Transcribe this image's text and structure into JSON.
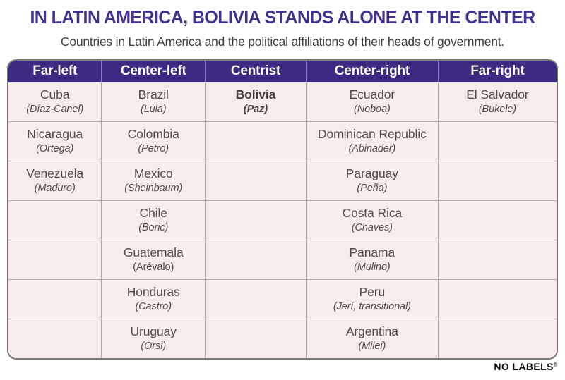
{
  "header": {
    "title": "IN LATIN AMERICA, BOLIVIA STANDS ALONE AT THE CENTER",
    "subtitle": "Countries in Latin America and the political affiliations of their heads of government."
  },
  "colors": {
    "title_purple": "#44318e",
    "header_bar_purple": "#3d2a81",
    "header_divider_lavender": "#8679bb",
    "cell_background": "#f6edea",
    "grid_line_gray": "#b2a8a4",
    "outer_border_gray": "#7e7874",
    "cell_text": "#534946",
    "footer_black": "#0e0e0e"
  },
  "chart_data": {
    "type": "table",
    "title": "IN LATIN AMERICA, BOLIVIA STANDS ALONE AT THE CENTER",
    "subtitle": "Countries in Latin America and the political affiliations of their heads of government.",
    "columns": [
      "Far-left",
      "Center-left",
      "Centrist",
      "Center-right",
      "Far-right"
    ],
    "column_width_percent": [
      17.0,
      18.9,
      18.4,
      24.1,
      21.6
    ],
    "rows": [
      [
        {
          "country": "Cuba",
          "leader": "(Díaz-Canel)",
          "bold": false,
          "italic": true
        },
        {
          "country": "Brazil",
          "leader": "(Lula)",
          "bold": false,
          "italic": true
        },
        {
          "country": "Bolivia",
          "leader": "(Paz)",
          "bold": true,
          "italic": true
        },
        {
          "country": "Ecuador",
          "leader": "(Noboa)",
          "bold": false,
          "italic": true
        },
        {
          "country": "El Salvador",
          "leader": "(Bukele)",
          "bold": false,
          "italic": true
        }
      ],
      [
        {
          "country": "Nicaragua",
          "leader": "(Ortega)",
          "bold": false,
          "italic": true
        },
        {
          "country": "Colombia",
          "leader": "(Petro)",
          "bold": false,
          "italic": true
        },
        null,
        {
          "country": "Dominican Republic",
          "leader": "(Abinader)",
          "bold": false,
          "italic": true
        },
        null
      ],
      [
        {
          "country": "Venezuela",
          "leader": "(Maduro)",
          "bold": false,
          "italic": true
        },
        {
          "country": "Mexico",
          "leader": "(Sheinbaum)",
          "bold": false,
          "italic": true
        },
        null,
        {
          "country": "Paraguay",
          "leader": "(Peña)",
          "bold": false,
          "italic": true
        },
        null
      ],
      [
        null,
        {
          "country": "Chile",
          "leader": "(Boric)",
          "bold": false,
          "italic": true
        },
        null,
        {
          "country": "Costa Rica",
          "leader": "(Chaves)",
          "bold": false,
          "italic": true
        },
        null
      ],
      [
        null,
        {
          "country": "Guatemala",
          "leader": "(Arévalo)",
          "bold": false,
          "italic": false
        },
        null,
        {
          "country": "Panama",
          "leader": "(Mulino)",
          "bold": false,
          "italic": true
        },
        null
      ],
      [
        null,
        {
          "country": "Honduras",
          "leader": "(Castro)",
          "bold": false,
          "italic": true
        },
        null,
        {
          "country": "Peru",
          "leader": "(Jerí, transitional)",
          "bold": false,
          "italic": true
        },
        null
      ],
      [
        null,
        {
          "country": "Uruguay",
          "leader": "(Orsi)",
          "bold": false,
          "italic": true
        },
        null,
        {
          "country": "Argentina",
          "leader": "(Milei)",
          "bold": false,
          "italic": true
        },
        null
      ]
    ]
  },
  "footer": {
    "brand": "NO LABELS",
    "mark": "®"
  }
}
